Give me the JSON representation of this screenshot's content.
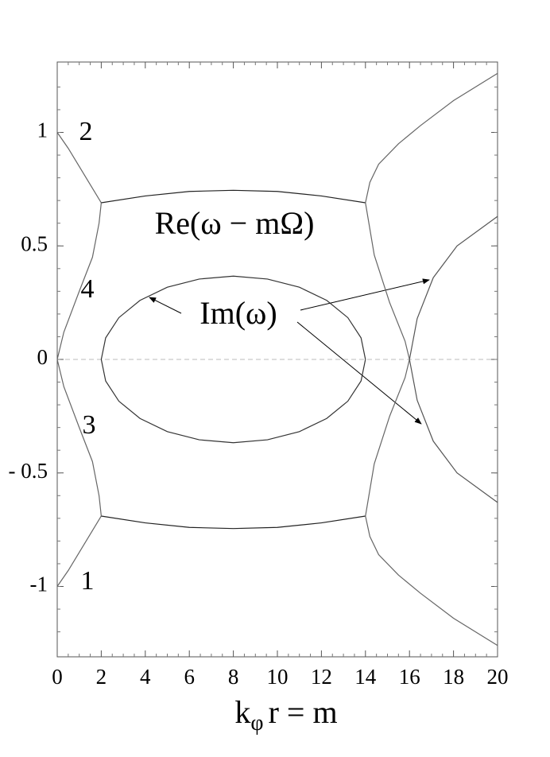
{
  "chart_data": {
    "type": "line",
    "xlim": [
      0,
      20
    ],
    "ylim": [
      -1.31,
      1.31
    ],
    "xticks": [
      0,
      2,
      4,
      6,
      8,
      10,
      12,
      14,
      16,
      18,
      20
    ],
    "yticks": [
      -1,
      {
        "value": -0.5,
        "label": "- 0.5"
      },
      0,
      0.5,
      1
    ],
    "zero_line": true,
    "xlabel": {
      "base": "k",
      "sub": "φ",
      "rest": "r = m"
    },
    "annotations": [
      "Re(ω − mΩ)",
      "Im(ω)",
      "2",
      "4",
      "3",
      "1"
    ],
    "series": [
      {
        "color": "#666",
        "x": [
          0,
          0.5,
          1,
          1.5,
          2
        ],
        "values": [
          1,
          0.93,
          0.85,
          0.77,
          0.69
        ]
      },
      {
        "color": "#222",
        "x": [
          2,
          4,
          6,
          8,
          10,
          12,
          14
        ],
        "values": [
          0.69,
          0.72,
          0.74,
          0.745,
          0.74,
          0.72,
          0.69
        ]
      },
      {
        "color": "#666",
        "x": [
          14,
          14.2,
          14.6,
          15.5,
          16.5,
          18,
          20
        ],
        "values": [
          0.69,
          0.78,
          0.86,
          0.95,
          1.03,
          1.14,
          1.26
        ]
      },
      {
        "color": "#666",
        "x": [
          0,
          0.5,
          1,
          1.5,
          2
        ],
        "values": [
          -1,
          -0.93,
          -0.85,
          -0.77,
          -0.69
        ]
      },
      {
        "color": "#222",
        "x": [
          2,
          4,
          6,
          8,
          10,
          12,
          14
        ],
        "values": [
          -0.69,
          -0.72,
          -0.74,
          -0.745,
          -0.74,
          -0.72,
          -0.69
        ]
      },
      {
        "color": "#666",
        "x": [
          14,
          14.2,
          14.6,
          15.5,
          16.5,
          18,
          20
        ],
        "values": [
          -0.69,
          -0.78,
          -0.86,
          -0.95,
          -1.03,
          -1.14,
          -1.26
        ]
      },
      {
        "color": "#666",
        "x": [
          2,
          1.9,
          1.6,
          1,
          0.3,
          0
        ],
        "values": [
          0.69,
          0.6,
          0.45,
          0.3,
          0.12,
          0
        ]
      },
      {
        "color": "#666",
        "x": [
          2,
          1.9,
          1.6,
          1,
          0.3,
          0
        ],
        "values": [
          -0.69,
          -0.6,
          -0.45,
          -0.3,
          -0.12,
          0
        ]
      },
      {
        "color": "#666",
        "x": [
          14,
          14.4,
          15.1,
          15.8,
          16,
          15.8,
          15.1,
          14.4,
          14
        ],
        "values": [
          0.69,
          0.46,
          0.25,
          0.08,
          0,
          -0.08,
          -0.25,
          -0.46,
          -0.69
        ]
      },
      {
        "color": "#333",
        "x": [
          14,
          13.8,
          13.2,
          12.24,
          11,
          9.55,
          8,
          6.45,
          5,
          3.76,
          2.8,
          2.2,
          2,
          2.2,
          2.8,
          3.76,
          5,
          6.45,
          8,
          9.55,
          11,
          12.24,
          13.2,
          13.8,
          14
        ],
        "values": [
          0,
          0.095,
          0.184,
          0.26,
          0.318,
          0.354,
          0.367,
          0.354,
          0.318,
          0.26,
          0.184,
          0.095,
          0,
          -0.095,
          -0.184,
          -0.26,
          -0.318,
          -0.354,
          -0.367,
          -0.354,
          -0.318,
          -0.26,
          -0.184,
          -0.095,
          0
        ]
      },
      {
        "color": "#555",
        "x": [
          16,
          16.35,
          17.08,
          18.16,
          20
        ],
        "values": [
          0,
          0.18,
          0.36,
          0.5,
          0.63
        ]
      },
      {
        "color": "#555",
        "x": [
          16,
          16.35,
          17.08,
          18.16,
          20
        ],
        "values": [
          0,
          -0.18,
          -0.36,
          -0.5,
          -0.63
        ]
      }
    ]
  }
}
